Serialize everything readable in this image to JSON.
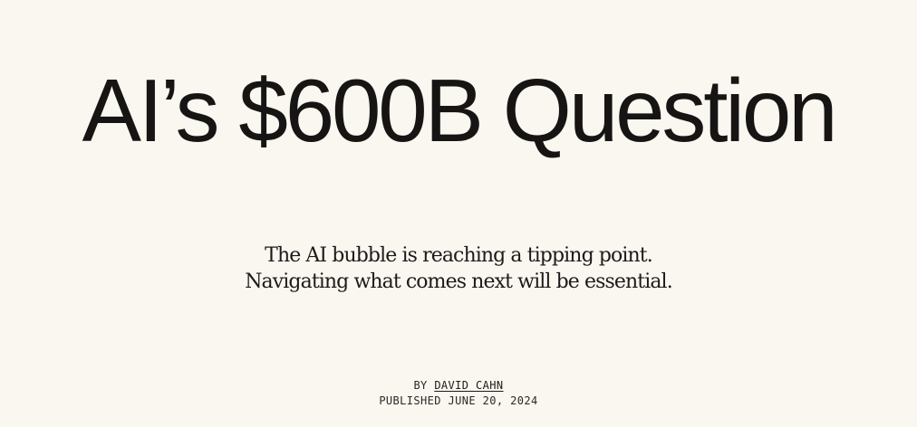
{
  "article": {
    "title": "AI’s $600B Question",
    "subtitle_line1": "The AI bubble is reaching a tipping point.",
    "subtitle_line2": "Navigating what comes next will be essential.",
    "byline_prefix": "BY",
    "author": "DAVID CAHN",
    "published": "PUBLISHED JUNE 20, 2024"
  },
  "colors": {
    "background": "#faf6f0",
    "text": "#161514"
  }
}
